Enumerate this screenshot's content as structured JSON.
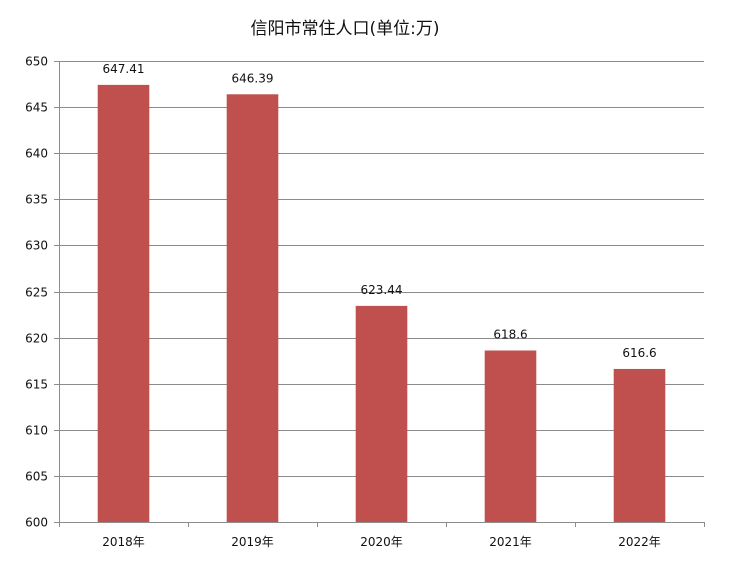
{
  "chart_data": {
    "type": "bar",
    "title": "信阳市常住人口(单位:万)",
    "categories": [
      "2018年",
      "2019年",
      "2020年",
      "2021年",
      "2022年"
    ],
    "values": [
      647.41,
      646.39,
      623.44,
      618.6,
      616.6
    ],
    "value_labels": [
      "647.41",
      "646.39",
      "623.44",
      "618.6",
      "616.6"
    ],
    "xlabel": "",
    "ylabel": "",
    "ylim": [
      600,
      650
    ],
    "ytick_step": 5,
    "grid": true,
    "legend": "none",
    "bar_color": "#c0504d"
  }
}
